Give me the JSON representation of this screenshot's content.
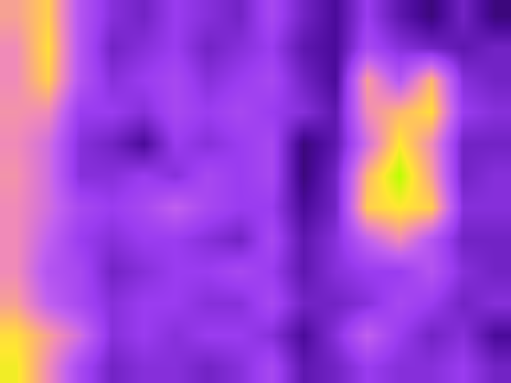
{
  "chart_data": {
    "type": "heatmap",
    "z": [
      [
        0.75,
        0.85,
        0.5,
        0.35,
        0.3,
        0.4,
        0.35,
        0.3,
        0.45,
        0.3,
        0.2,
        0.4,
        0.25,
        0.15,
        0.3,
        0.15
      ],
      [
        0.7,
        0.88,
        0.5,
        0.3,
        0.35,
        0.4,
        0.3,
        0.35,
        0.4,
        0.25,
        0.2,
        0.45,
        0.35,
        0.3,
        0.25,
        0.3
      ],
      [
        0.7,
        0.85,
        0.5,
        0.35,
        0.4,
        0.45,
        0.35,
        0.4,
        0.45,
        0.3,
        0.2,
        0.75,
        0.5,
        0.8,
        0.35,
        0.3
      ],
      [
        0.72,
        0.7,
        0.4,
        0.4,
        0.35,
        0.45,
        0.4,
        0.45,
        0.4,
        0.35,
        0.25,
        0.7,
        0.8,
        0.88,
        0.4,
        0.35
      ],
      [
        0.7,
        0.6,
        0.35,
        0.3,
        0.2,
        0.4,
        0.35,
        0.4,
        0.45,
        0.15,
        0.25,
        0.6,
        0.9,
        0.7,
        0.3,
        0.3
      ],
      [
        0.72,
        0.6,
        0.35,
        0.35,
        0.4,
        0.35,
        0.45,
        0.4,
        0.45,
        0.15,
        0.3,
        0.8,
        1.0,
        0.75,
        0.3,
        0.35
      ],
      [
        0.7,
        0.6,
        0.45,
        0.4,
        0.45,
        0.55,
        0.45,
        0.4,
        0.4,
        0.2,
        0.3,
        0.85,
        0.9,
        0.85,
        0.35,
        0.35
      ],
      [
        0.7,
        0.55,
        0.4,
        0.35,
        0.4,
        0.4,
        0.35,
        0.3,
        0.45,
        0.25,
        0.35,
        0.55,
        0.7,
        0.5,
        0.3,
        0.3
      ],
      [
        0.7,
        0.5,
        0.45,
        0.3,
        0.35,
        0.4,
        0.4,
        0.45,
        0.4,
        0.25,
        0.35,
        0.4,
        0.4,
        0.5,
        0.35,
        0.3
      ],
      [
        0.75,
        0.55,
        0.45,
        0.35,
        0.4,
        0.4,
        0.35,
        0.35,
        0.45,
        0.3,
        0.3,
        0.35,
        0.45,
        0.4,
        0.3,
        0.35
      ],
      [
        0.88,
        0.75,
        0.6,
        0.35,
        0.4,
        0.35,
        0.4,
        0.4,
        0.35,
        0.2,
        0.35,
        0.55,
        0.4,
        0.3,
        0.35,
        0.2
      ],
      [
        0.92,
        0.7,
        0.45,
        0.3,
        0.35,
        0.35,
        0.3,
        0.35,
        0.45,
        0.25,
        0.3,
        0.4,
        0.35,
        0.35,
        0.4,
        0.3
      ]
    ],
    "zlim": [
      0,
      1
    ],
    "tick_labels": false
  }
}
